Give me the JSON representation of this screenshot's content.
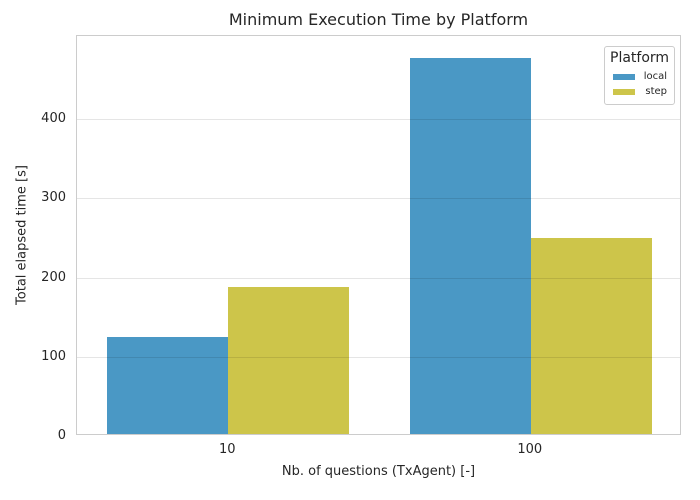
{
  "chart_data": {
    "type": "bar",
    "title": "Minimum Execution Time by Platform",
    "xlabel": "Nb. of questions (TxAgent) [-]",
    "ylabel": "Total elapsed time [s]",
    "categories": [
      "10",
      "100"
    ],
    "series": [
      {
        "name": "local",
        "color": "#4A98C5",
        "values": [
          122,
          475
        ]
      },
      {
        "name": "step",
        "color": "#CDC54A",
        "values": [
          185,
          248
        ]
      }
    ],
    "ylim": [
      0,
      505
    ],
    "yticks": [
      0,
      100,
      200,
      300,
      400
    ],
    "grid": true,
    "grid_color": "#dddddd",
    "spine_color": "#cccccc",
    "background": "#ffffff",
    "legend": {
      "title": "Platform",
      "position": "upper right"
    }
  }
}
